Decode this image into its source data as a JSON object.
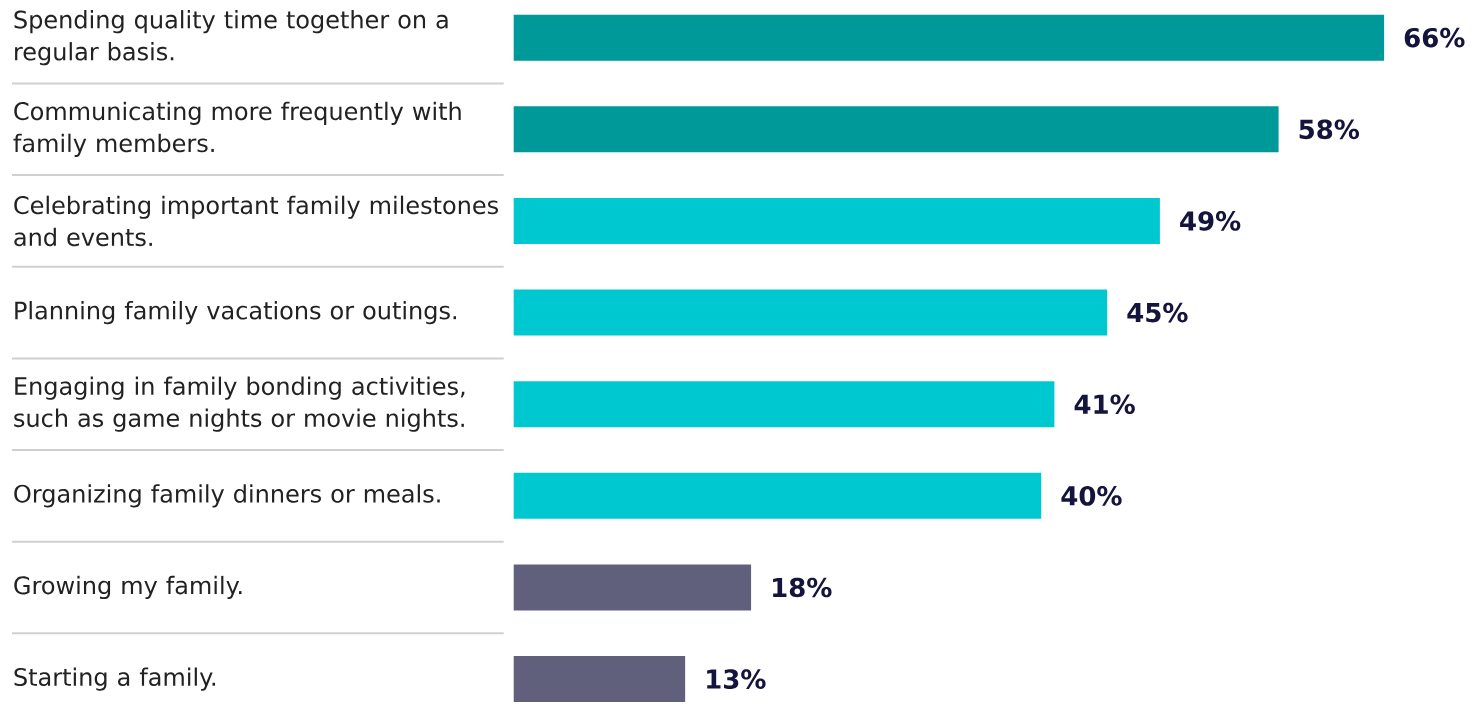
{
  "chart_data": {
    "type": "bar",
    "orientation": "horizontal",
    "categories": [
      "Spending quality time together on a regular basis.",
      "Communicating more frequently with family members.",
      "Celebrating important family milestones and events.",
      "Planning family vacations or outings.",
      "Engaging in family bonding activities, such as game nights or movie nights.",
      "Organizing family dinners or meals.",
      "Growing my family.",
      "Starting a family."
    ],
    "values": [
      66,
      58,
      49,
      45,
      41,
      40,
      18,
      13
    ],
    "value_labels": [
      "66%",
      "58%",
      "49%",
      "45%",
      "41%",
      "40%",
      "18%",
      "13%"
    ],
    "colors": [
      "#009999",
      "#009999",
      "#00c8d0",
      "#00c8d0",
      "#00c8d0",
      "#00c8d0",
      "#60607c",
      "#60607c"
    ]
  }
}
